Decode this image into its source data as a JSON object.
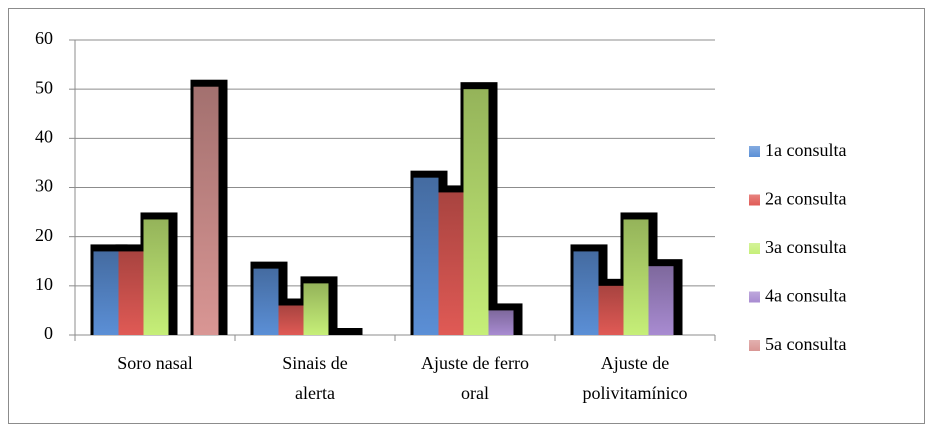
{
  "chart_data": {
    "type": "bar",
    "categories": [
      "Soro nasal",
      "Sinais de\nalerta",
      "Ajuste de ferro\noral",
      "Ajuste de\npolivitamínico"
    ],
    "series": [
      {
        "name": "1a consulta",
        "color": "#5b8fd6",
        "values": [
          17,
          13.5,
          32,
          17
        ]
      },
      {
        "name": "2a consulta",
        "color": "#e05a55",
        "values": [
          17,
          6,
          29,
          10
        ]
      },
      {
        "name": "3a consulta",
        "color": "#c6ef78",
        "values": [
          23.5,
          10.5,
          50,
          23.5
        ]
      },
      {
        "name": "4a consulta",
        "color": "#a88bd1",
        "values": [
          null,
          0,
          5,
          14
        ]
      },
      {
        "name": "5a consulta",
        "color": "#d99694",
        "values": [
          50.5,
          null,
          null,
          null
        ]
      }
    ],
    "ylim": [
      0,
      60
    ],
    "yticks": [
      0,
      10,
      20,
      30,
      40,
      50,
      60
    ],
    "grid": true
  }
}
